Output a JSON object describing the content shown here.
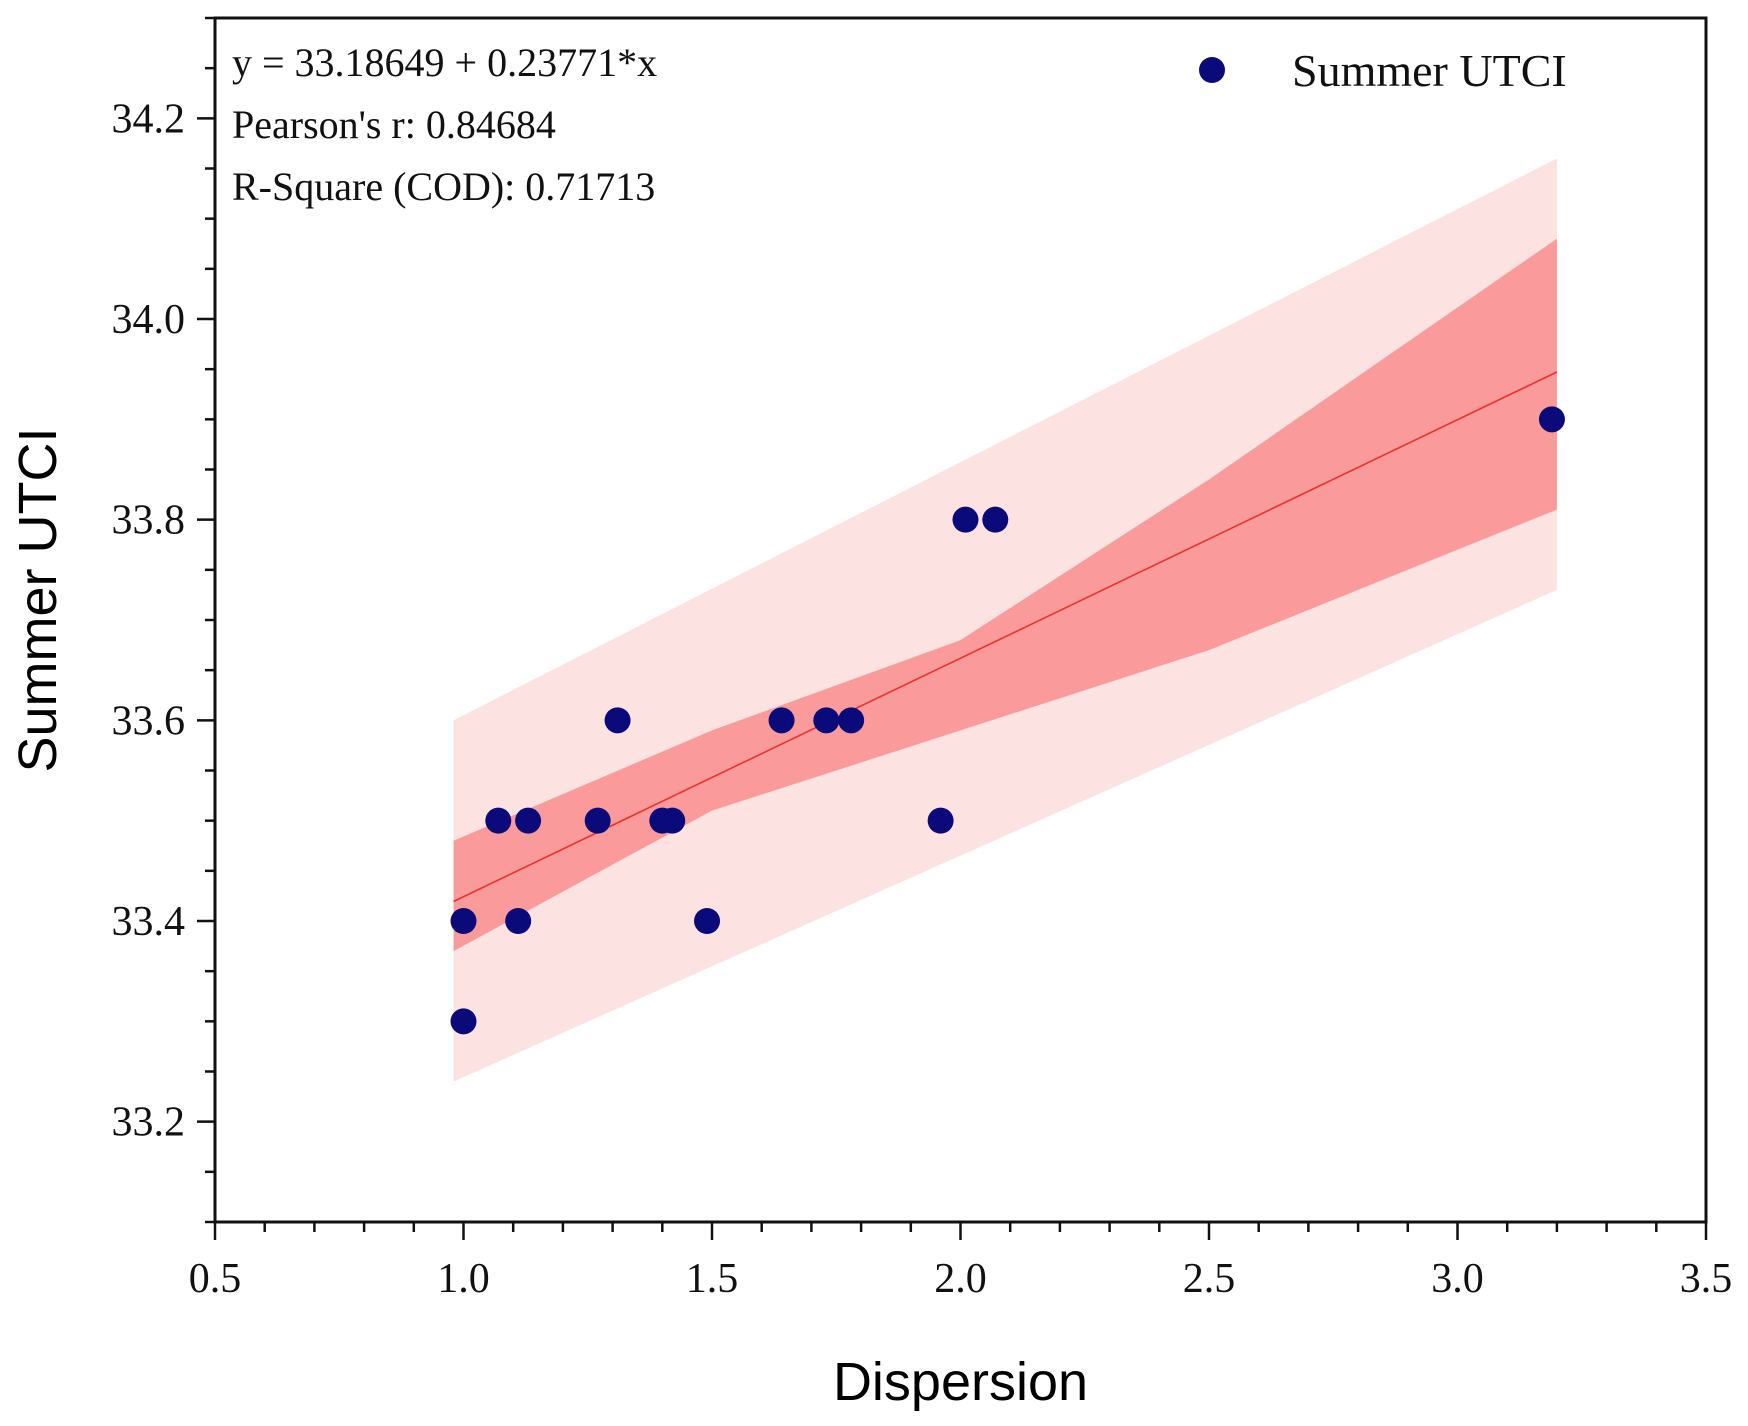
{
  "chart_data": {
    "type": "scatter",
    "title": "",
    "xlabel": "Dispersion",
    "ylabel": "Summer UTCI",
    "xlim": [
      0.5,
      3.5
    ],
    "ylim": [
      33.1,
      34.3
    ],
    "x_ticks": [
      0.5,
      1.0,
      1.5,
      2.0,
      2.5,
      3.0,
      3.5
    ],
    "x_tick_labels": [
      "0.5",
      "1.0",
      "1.5",
      "2.0",
      "2.5",
      "3.0",
      "3.5"
    ],
    "y_ticks": [
      33.2,
      33.4,
      33.6,
      33.8,
      34.0,
      34.2
    ],
    "y_tick_labels": [
      "33.2",
      "33.4",
      "33.6",
      "33.8",
      "34.0",
      "34.2"
    ],
    "grid": false,
    "legend": {
      "position": "top-right",
      "entries": [
        "Summer UTCI"
      ]
    },
    "series": [
      {
        "name": "Summer UTCI",
        "color": "#0a0a7a",
        "points": [
          {
            "x": 1.0,
            "y": 33.3
          },
          {
            "x": 1.0,
            "y": 33.4
          },
          {
            "x": 1.11,
            "y": 33.4
          },
          {
            "x": 1.49,
            "y": 33.4
          },
          {
            "x": 1.07,
            "y": 33.5
          },
          {
            "x": 1.13,
            "y": 33.5
          },
          {
            "x": 1.27,
            "y": 33.5
          },
          {
            "x": 1.4,
            "y": 33.5
          },
          {
            "x": 1.42,
            "y": 33.5
          },
          {
            "x": 1.96,
            "y": 33.5
          },
          {
            "x": 1.31,
            "y": 33.6
          },
          {
            "x": 1.64,
            "y": 33.6
          },
          {
            "x": 1.73,
            "y": 33.6
          },
          {
            "x": 1.78,
            "y": 33.6
          },
          {
            "x": 2.01,
            "y": 33.8
          },
          {
            "x": 2.07,
            "y": 33.8
          },
          {
            "x": 3.19,
            "y": 33.9
          }
        ]
      }
    ],
    "fit": {
      "intercept": 33.18649,
      "slope": 0.23771,
      "x_range": [
        0.98,
        3.2
      ],
      "color": "#e8332e",
      "confidence_band": {
        "color": "#fa9a9a",
        "x": [
          0.98,
          1.5,
          2.0,
          2.5,
          3.2
        ],
        "lower": [
          33.37,
          33.51,
          33.59,
          33.67,
          33.81
        ],
        "upper": [
          33.48,
          33.59,
          33.68,
          33.84,
          34.08
        ]
      },
      "prediction_band": {
        "color": "#fde2e2",
        "x": [
          0.98,
          3.2
        ],
        "lower": [
          33.24,
          33.73
        ],
        "upper": [
          33.6,
          34.16
        ]
      }
    },
    "annotations": [
      "y = 33.18649 + 0.23771*x",
      "Pearson's r: 0.84684",
      "R-Square (COD): 0.71713"
    ]
  }
}
